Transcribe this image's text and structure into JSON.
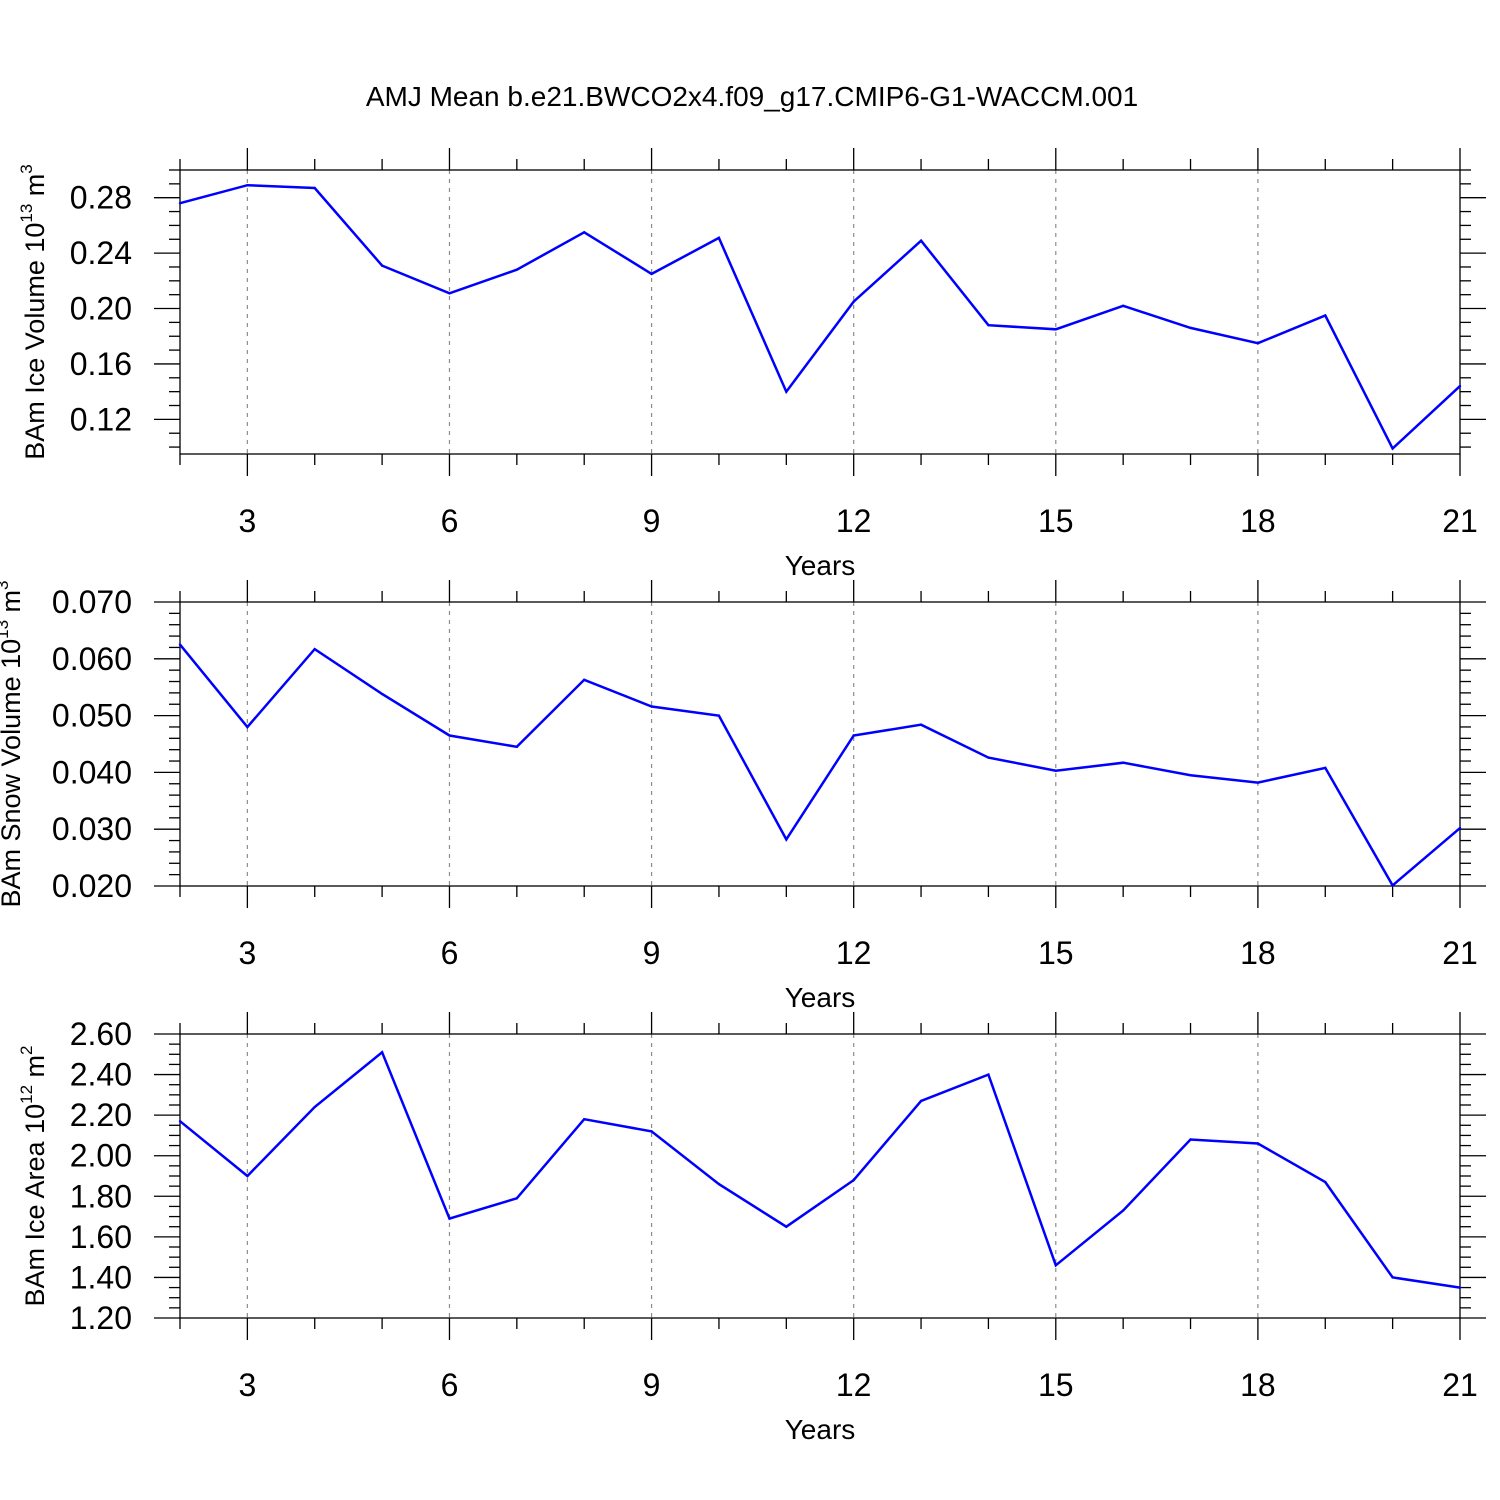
{
  "chart_title": "AMJ Mean b.e21.BWCO2x4.f09_g17.CMIP6-G1-WACCM.001",
  "line_color": "#0000ff",
  "chart_data": [
    {
      "type": "line",
      "title": "AMJ Mean b.e21.BWCO2x4.f09_g17.CMIP6-G1-WACCM.001",
      "xlabel": "Years",
      "ylabel": {
        "prefix": "BAm Ice Volume 10",
        "exp": "13",
        "unit": " m",
        "unit_exp": "3"
      },
      "xlim": [
        2,
        21
      ],
      "ylim": [
        0.095,
        0.3
      ],
      "xticks": [
        3,
        6,
        9,
        12,
        15,
        18,
        21
      ],
      "xtick_labels": [
        "3",
        "6",
        "9",
        "12",
        "15",
        "18",
        "21"
      ],
      "yticks": [
        0.12,
        0.16,
        0.2,
        0.24,
        0.28
      ],
      "ytick_labels": [
        "0.12",
        "0.16",
        "0.20",
        "0.24",
        "0.28"
      ],
      "ytick_minor": 0.01,
      "grid": "vertical-dashed",
      "x": [
        2,
        3,
        4,
        5,
        6,
        7,
        8,
        9,
        10,
        11,
        12,
        13,
        14,
        15,
        16,
        17,
        18,
        19,
        20,
        21
      ],
      "values": [
        0.276,
        0.289,
        0.287,
        0.231,
        0.211,
        0.228,
        0.255,
        0.225,
        0.251,
        0.14,
        0.205,
        0.249,
        0.188,
        0.185,
        0.202,
        0.186,
        0.175,
        0.195,
        0.099,
        0.144
      ]
    },
    {
      "type": "line",
      "xlabel": "Years",
      "ylabel": {
        "prefix": "BAm Snow Volume 10",
        "exp": "13",
        "unit": " m",
        "unit_exp": "3"
      },
      "xlim": [
        2,
        21
      ],
      "ylim": [
        0.02,
        0.07
      ],
      "xticks": [
        3,
        6,
        9,
        12,
        15,
        18,
        21
      ],
      "xtick_labels": [
        "3",
        "6",
        "9",
        "12",
        "15",
        "18",
        "21"
      ],
      "yticks": [
        0.02,
        0.03,
        0.04,
        0.05,
        0.06,
        0.07
      ],
      "ytick_labels": [
        "0.020",
        "0.030",
        "0.040",
        "0.050",
        "0.060",
        "0.070"
      ],
      "ytick_minor": 0.002,
      "grid": "vertical-dashed",
      "x": [
        2,
        3,
        4,
        5,
        6,
        7,
        8,
        9,
        10,
        11,
        12,
        13,
        14,
        15,
        16,
        17,
        18,
        19,
        20,
        21
      ],
      "values": [
        0.0625,
        0.048,
        0.0617,
        0.0538,
        0.0465,
        0.0445,
        0.0563,
        0.0516,
        0.05,
        0.0282,
        0.0465,
        0.0484,
        0.0426,
        0.0403,
        0.0417,
        0.0395,
        0.0382,
        0.0408,
        0.0201,
        0.0302
      ]
    },
    {
      "type": "line",
      "xlabel": "Years",
      "ylabel": {
        "prefix": "BAm Ice Area 10",
        "exp": "12",
        "unit": " m",
        "unit_exp": "2"
      },
      "xlim": [
        2,
        21
      ],
      "ylim": [
        1.2,
        2.6
      ],
      "xticks": [
        3,
        6,
        9,
        12,
        15,
        18,
        21
      ],
      "xtick_labels": [
        "3",
        "6",
        "9",
        "12",
        "15",
        "18",
        "21"
      ],
      "yticks": [
        1.2,
        1.4,
        1.6,
        1.8,
        2.0,
        2.2,
        2.4,
        2.6
      ],
      "ytick_labels": [
        "1.20",
        "1.40",
        "1.60",
        "1.80",
        "2.00",
        "2.20",
        "2.40",
        "2.60"
      ],
      "ytick_minor": 0.05,
      "grid": "vertical-dashed",
      "x": [
        2,
        3,
        4,
        5,
        6,
        7,
        8,
        9,
        10,
        11,
        12,
        13,
        14,
        15,
        16,
        17,
        18,
        19,
        20,
        21
      ],
      "values": [
        2.17,
        1.9,
        2.24,
        2.51,
        1.69,
        1.79,
        2.18,
        2.12,
        1.86,
        1.65,
        1.88,
        2.27,
        2.4,
        1.46,
        1.73,
        2.08,
        2.06,
        1.87,
        1.4,
        1.35
      ]
    }
  ]
}
